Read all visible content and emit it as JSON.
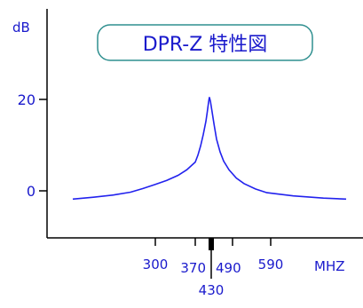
{
  "chart_data": {
    "type": "line",
    "title": "DPR-Z 特性図",
    "ylabel": "dB",
    "xlabel": "MHZ",
    "ylim": [
      -10,
      41
    ],
    "y_ticks": [
      {
        "value": 0,
        "label": "0"
      },
      {
        "value": 20,
        "label": "20"
      }
    ],
    "x_ticks": [
      {
        "value": 300,
        "label": "300"
      },
      {
        "value": 370,
        "label": "370"
      },
      {
        "value": 430,
        "label": "430"
      },
      {
        "value": 490,
        "label": "490"
      },
      {
        "value": 590,
        "label": "590"
      }
    ],
    "grid": false,
    "series": [
      {
        "color": "#2222ee",
        "points": [
          [
            100,
            -1.8
          ],
          [
            150,
            -1.4
          ],
          [
            200,
            -0.9
          ],
          [
            240,
            -0.3
          ],
          [
            270,
            0.5
          ],
          [
            300,
            1.4
          ],
          [
            320,
            2.3
          ],
          [
            340,
            3.4
          ],
          [
            355,
            4.6
          ],
          [
            370,
            6.3
          ],
          [
            380,
            7.8
          ],
          [
            390,
            9.8
          ],
          [
            400,
            12.3
          ],
          [
            410,
            15.2
          ],
          [
            415,
            17.2
          ],
          [
            420,
            19.4
          ],
          [
            423,
            20.5
          ],
          [
            427,
            19.6
          ],
          [
            432,
            17.5
          ],
          [
            438,
            14.5
          ],
          [
            445,
            11.3
          ],
          [
            455,
            8.5
          ],
          [
            465,
            6.5
          ],
          [
            480,
            4.6
          ],
          [
            500,
            2.8
          ],
          [
            520,
            1.6
          ],
          [
            550,
            0.4
          ],
          [
            580,
            -0.4
          ],
          [
            620,
            -1.1
          ],
          [
            660,
            -1.6
          ],
          [
            690,
            -1.8
          ]
        ]
      }
    ],
    "colors": {
      "axis": "#000000",
      "text": "#1a1acc",
      "title_border": "#2f8f8f"
    }
  }
}
